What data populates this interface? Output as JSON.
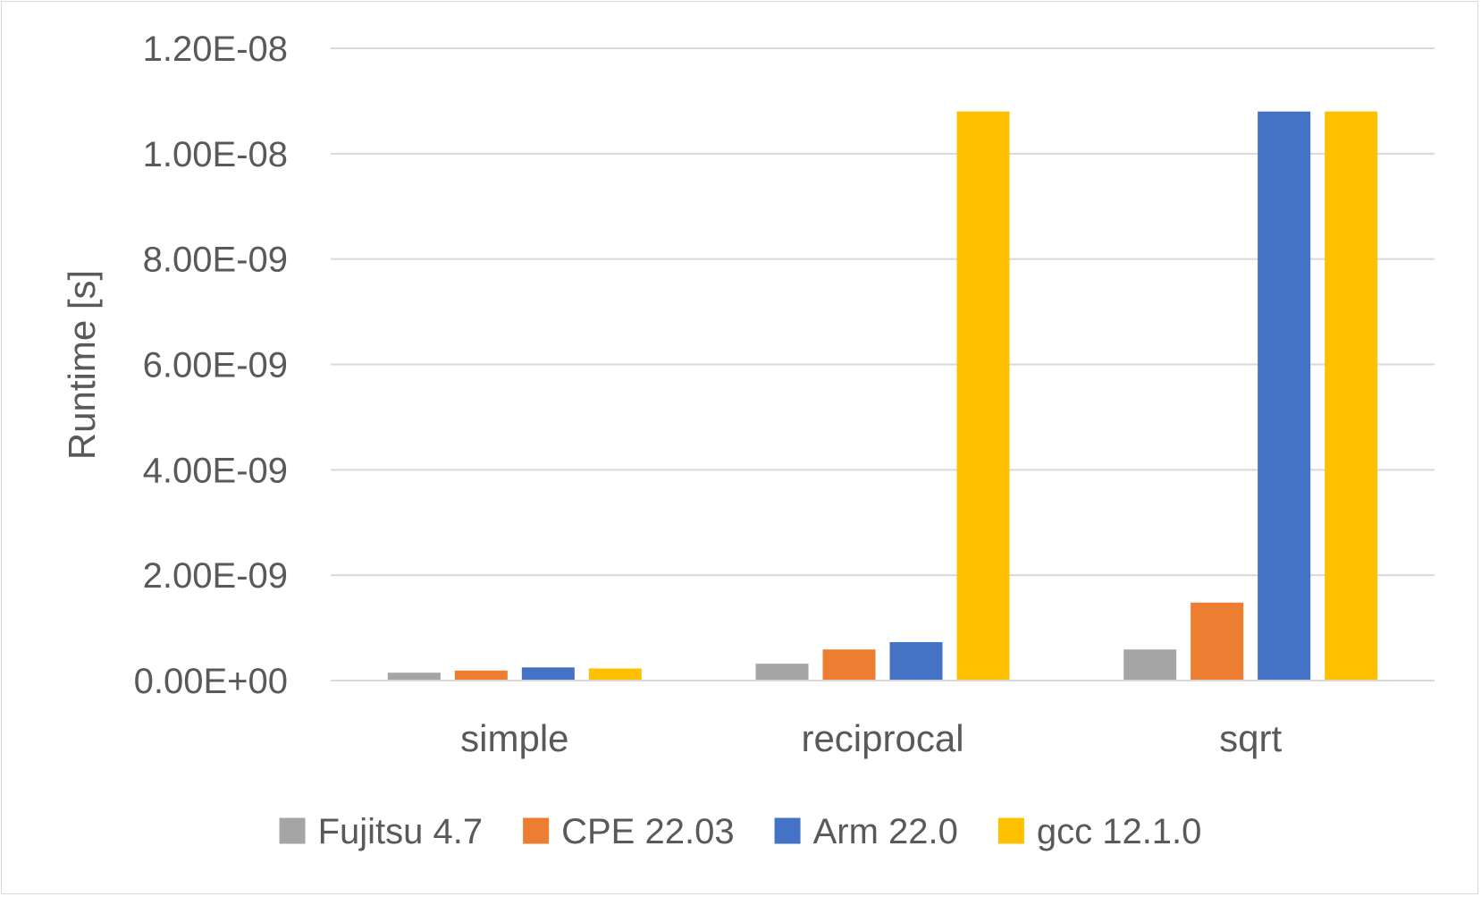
{
  "chart_data": {
    "type": "bar",
    "title": "",
    "xlabel": "",
    "ylabel": "Runtime [s]",
    "categories": [
      "simple",
      "reciprocal",
      "sqrt"
    ],
    "series": [
      {
        "name": "Fujitsu 4.7",
        "color": "#a5a5a5",
        "values": [
          1.5e-10,
          3.2e-10,
          5.9e-10
        ]
      },
      {
        "name": "CPE 22.03",
        "color": "#ed7d31",
        "values": [
          1.9e-10,
          5.9e-10,
          1.48e-09
        ]
      },
      {
        "name": "Arm 22.0",
        "color": "#4472c4",
        "values": [
          2.5e-10,
          7.3e-10,
          1.08e-08
        ]
      },
      {
        "name": "gcc 12.1.0",
        "color": "#ffc000",
        "values": [
          2.3e-10,
          1.08e-08,
          1.08e-08
        ]
      }
    ],
    "ylim": [
      0,
      1.2e-08
    ],
    "yticks": [
      0,
      2e-09,
      4e-09,
      6e-09,
      8e-09,
      1e-08,
      1.2e-08
    ],
    "ytick_labels": [
      "0.00E+00",
      "2.00E-09",
      "4.00E-09",
      "6.00E-09",
      "8.00E-09",
      "1.00E-08",
      "1.20E-08"
    ],
    "grid": true,
    "gridline_color": "#d9d9d9",
    "legend_position": "bottom"
  }
}
